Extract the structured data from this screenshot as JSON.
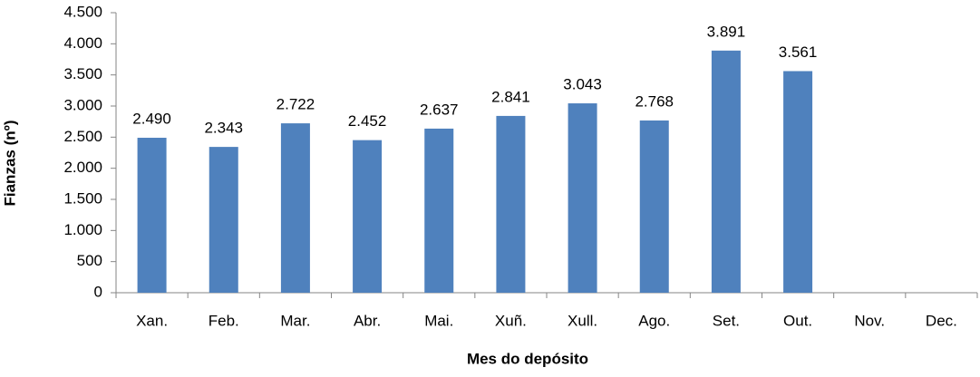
{
  "chart_data": {
    "type": "bar",
    "x_label": "Mes do depósito",
    "y_label": "Fianzas (nº)",
    "categories": [
      "Xan.",
      "Feb.",
      "Mar.",
      "Abr.",
      "Mai.",
      "Xuñ.",
      "Xull.",
      "Ago.",
      "Set.",
      "Out.",
      "Nov.",
      "Dec."
    ],
    "values": [
      2490,
      2343,
      2722,
      2452,
      2637,
      2841,
      3043,
      2768,
      3891,
      3561,
      null,
      null
    ],
    "value_labels": [
      "2.490",
      "2.343",
      "2.722",
      "2.452",
      "2.637",
      "2.841",
      "3.043",
      "2.768",
      "3.891",
      "3.561",
      null,
      null
    ],
    "color": "#4f81bd",
    "ylim": [
      0,
      4500
    ],
    "yticks": [
      0,
      500,
      {
        "value": 1000,
        "label": "1.000"
      },
      {
        "value": 1500,
        "label": "1.500"
      },
      {
        "value": 2000,
        "label": "2.000"
      },
      {
        "value": 2500,
        "label": "2.500"
      },
      {
        "value": 3000,
        "label": "3.000"
      },
      {
        "value": 3500,
        "label": "3.500"
      },
      {
        "value": 4000,
        "label": "4.000"
      },
      {
        "value": 4500,
        "label": "4.500"
      }
    ],
    "grid": false
  }
}
